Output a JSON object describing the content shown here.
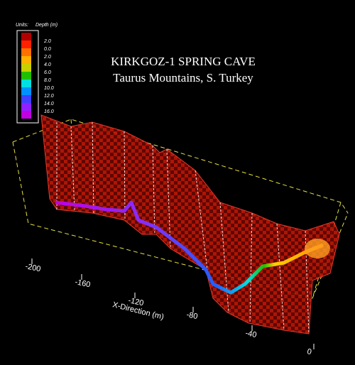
{
  "title": "KIRKGOZ-1 SPRING CAVE",
  "subtitle": "Taurus Mountains, S. Turkey",
  "legend": {
    "units": "Units:",
    "quantity": "Depth (m)",
    "colors": [
      "#b00000",
      "#ff2000",
      "#ff7000",
      "#ffb000",
      "#c8d000",
      "#20c000",
      "#00e0e0",
      "#0090ff",
      "#4040ff",
      "#9020ff",
      "#c000e0"
    ],
    "labels": [
      "2.0",
      "0.0",
      "2.0",
      "4.0",
      "6.0",
      "8.0",
      "10.0",
      "12.0",
      "14.0",
      "16.0"
    ]
  },
  "x_axis": {
    "label": "X-Direction (m)",
    "ticks": [
      "-200",
      "-160",
      "-120",
      "-80",
      "-40",
      "0"
    ]
  }
}
